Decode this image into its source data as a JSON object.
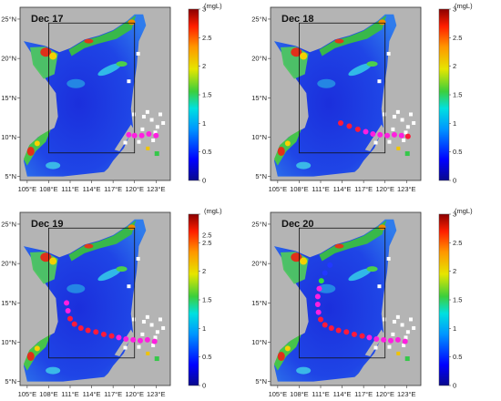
{
  "figure": {
    "unit_label": "(mgL)",
    "lon_ticks": [
      "105°E",
      "108°E",
      "111°E",
      "114°E",
      "117°E",
      "120°E",
      "123°E"
    ],
    "lat_ticks": [
      "25°N",
      "20°N",
      "15°N",
      "10°N",
      "5°N"
    ],
    "colorbar_ticks": [
      "0",
      "0.5",
      "1",
      "1.5",
      "2",
      "2.5",
      "3"
    ],
    "colors": {
      "land": "#b4b4b4",
      "sea_low": "#1d2fd8",
      "sea_mid": "#17a8e0",
      "sea_high": "#2fb84a",
      "hot": "#e02a1a",
      "track_magenta": "#ff1fe0",
      "track_red": "#ff1a3a",
      "track_green": "#33e03a",
      "track_blue": "#2238ff",
      "box": "#111111"
    }
  },
  "panels": [
    {
      "date": "Dec 17",
      "colorbar_max_tick": "3",
      "track": [
        {
          "lon": 119.2,
          "lat": 10.3,
          "c": "magenta"
        },
        {
          "lon": 120.0,
          "lat": 10.2,
          "c": "magenta"
        },
        {
          "lon": 121.0,
          "lat": 10.2,
          "c": "magenta"
        },
        {
          "lon": 122.0,
          "lat": 10.4,
          "c": "magenta"
        },
        {
          "lon": 123.0,
          "lat": 10.2,
          "c": "magenta"
        }
      ]
    },
    {
      "date": "Dec 18",
      "colorbar_max_tick": "3",
      "track": [
        {
          "lon": 113.8,
          "lat": 11.8,
          "c": "red"
        },
        {
          "lon": 115.0,
          "lat": 11.4,
          "c": "red"
        },
        {
          "lon": 116.2,
          "lat": 11.0,
          "c": "red"
        },
        {
          "lon": 117.3,
          "lat": 10.7,
          "c": "magenta"
        },
        {
          "lon": 118.3,
          "lat": 10.4,
          "c": "magenta"
        },
        {
          "lon": 119.3,
          "lat": 10.3,
          "c": "magenta"
        },
        {
          "lon": 120.3,
          "lat": 10.2,
          "c": "magenta"
        },
        {
          "lon": 121.3,
          "lat": 10.3,
          "c": "magenta"
        },
        {
          "lon": 122.3,
          "lat": 10.2,
          "c": "magenta"
        },
        {
          "lon": 123.2,
          "lat": 10.1,
          "c": "red"
        }
      ]
    },
    {
      "date": "Dec 19",
      "colorbar_max_tick": "2.5",
      "track": [
        {
          "lon": 110.5,
          "lat": 15.0,
          "c": "magenta"
        },
        {
          "lon": 110.7,
          "lat": 14.0,
          "c": "magenta"
        },
        {
          "lon": 111.0,
          "lat": 13.0,
          "c": "red"
        },
        {
          "lon": 111.6,
          "lat": 12.3,
          "c": "red"
        },
        {
          "lon": 112.5,
          "lat": 11.8,
          "c": "red"
        },
        {
          "lon": 113.5,
          "lat": 11.5,
          "c": "red"
        },
        {
          "lon": 114.6,
          "lat": 11.3,
          "c": "red"
        },
        {
          "lon": 115.7,
          "lat": 11.0,
          "c": "red"
        },
        {
          "lon": 116.8,
          "lat": 10.8,
          "c": "red"
        },
        {
          "lon": 117.8,
          "lat": 10.6,
          "c": "magenta"
        },
        {
          "lon": 118.8,
          "lat": 10.4,
          "c": "magenta"
        },
        {
          "lon": 119.8,
          "lat": 10.3,
          "c": "magenta"
        },
        {
          "lon": 120.8,
          "lat": 10.2,
          "c": "magenta"
        },
        {
          "lon": 121.8,
          "lat": 10.3,
          "c": "magenta"
        },
        {
          "lon": 122.8,
          "lat": 10.1,
          "c": "magenta"
        }
      ]
    },
    {
      "date": "Dec 20",
      "colorbar_max_tick": "3",
      "track": [
        {
          "lon": 112.3,
          "lat": 19.8,
          "c": "blue"
        },
        {
          "lon": 111.6,
          "lat": 18.8,
          "c": "blue"
        },
        {
          "lon": 111.1,
          "lat": 17.8,
          "c": "green"
        },
        {
          "lon": 110.8,
          "lat": 16.8,
          "c": "magenta"
        },
        {
          "lon": 110.6,
          "lat": 15.8,
          "c": "magenta"
        },
        {
          "lon": 110.6,
          "lat": 14.8,
          "c": "magenta"
        },
        {
          "lon": 110.7,
          "lat": 13.8,
          "c": "magenta"
        },
        {
          "lon": 111.0,
          "lat": 12.9,
          "c": "red"
        },
        {
          "lon": 111.6,
          "lat": 12.2,
          "c": "red"
        },
        {
          "lon": 112.5,
          "lat": 11.8,
          "c": "red"
        },
        {
          "lon": 113.5,
          "lat": 11.5,
          "c": "red"
        },
        {
          "lon": 114.6,
          "lat": 11.3,
          "c": "red"
        },
        {
          "lon": 115.7,
          "lat": 11.0,
          "c": "red"
        },
        {
          "lon": 116.8,
          "lat": 10.8,
          "c": "red"
        },
        {
          "lon": 117.8,
          "lat": 10.6,
          "c": "magenta"
        },
        {
          "lon": 118.8,
          "lat": 10.4,
          "c": "magenta"
        },
        {
          "lon": 119.8,
          "lat": 10.3,
          "c": "magenta"
        },
        {
          "lon": 120.8,
          "lat": 10.2,
          "c": "magenta"
        },
        {
          "lon": 121.8,
          "lat": 10.3,
          "c": "magenta"
        },
        {
          "lon": 122.8,
          "lat": 10.1,
          "c": "magenta"
        }
      ]
    }
  ]
}
